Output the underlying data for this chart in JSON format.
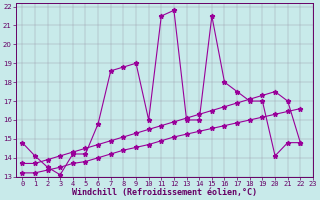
{
  "xlabel": "Windchill (Refroidissement éolien,°C)",
  "bg_color": "#c8eaea",
  "line_color": "#990099",
  "grid_color": "#9999aa",
  "xlim": [
    -0.5,
    23
  ],
  "ylim": [
    13,
    22.2
  ],
  "xticks": [
    0,
    1,
    2,
    3,
    4,
    5,
    6,
    7,
    8,
    9,
    10,
    11,
    12,
    13,
    14,
    15,
    16,
    17,
    18,
    19,
    20,
    21,
    22,
    23
  ],
  "yticks": [
    13,
    14,
    15,
    16,
    17,
    18,
    19,
    20,
    21,
    22
  ],
  "series": [
    {
      "x": [
        0,
        1,
        2,
        3,
        4,
        5,
        6,
        7,
        8,
        9,
        10,
        11,
        12,
        13,
        14,
        15,
        16,
        17,
        18,
        19,
        20,
        21,
        22
      ],
      "y": [
        14.8,
        14.1,
        13.5,
        13.1,
        14.2,
        14.2,
        15.8,
        18.6,
        18.8,
        19.0,
        16.0,
        21.5,
        21.8,
        16.0,
        16.0,
        21.5,
        18.0,
        17.5,
        17.0,
        17.0,
        14.1,
        14.8,
        14.8
      ]
    },
    {
      "x": [
        0,
        1,
        2,
        3,
        4,
        5,
        6,
        7,
        8,
        9,
        10,
        11,
        12,
        13,
        14,
        15,
        16,
        17,
        18,
        19,
        20,
        21,
        22
      ],
      "y": [
        13.2,
        13.2,
        13.35,
        13.5,
        13.7,
        13.8,
        14.0,
        14.2,
        14.4,
        14.55,
        14.7,
        14.9,
        15.1,
        15.25,
        15.4,
        15.55,
        15.7,
        15.85,
        16.0,
        16.15,
        16.3,
        16.45,
        16.6
      ]
    },
    {
      "x": [
        0,
        1,
        2,
        3,
        4,
        5,
        6,
        7,
        8,
        9,
        10,
        11,
        12,
        13,
        14,
        15,
        16,
        17,
        18,
        19,
        20,
        21,
        22
      ],
      "y": [
        13.7,
        13.7,
        13.9,
        14.1,
        14.3,
        14.5,
        14.7,
        14.9,
        15.1,
        15.3,
        15.5,
        15.7,
        15.9,
        16.1,
        16.3,
        16.5,
        16.7,
        16.9,
        17.1,
        17.3,
        17.5,
        17.0,
        14.8
      ]
    }
  ],
  "tick_color": "#660066",
  "tick_fontsize": 5.0,
  "xlabel_fontsize": 6.0
}
